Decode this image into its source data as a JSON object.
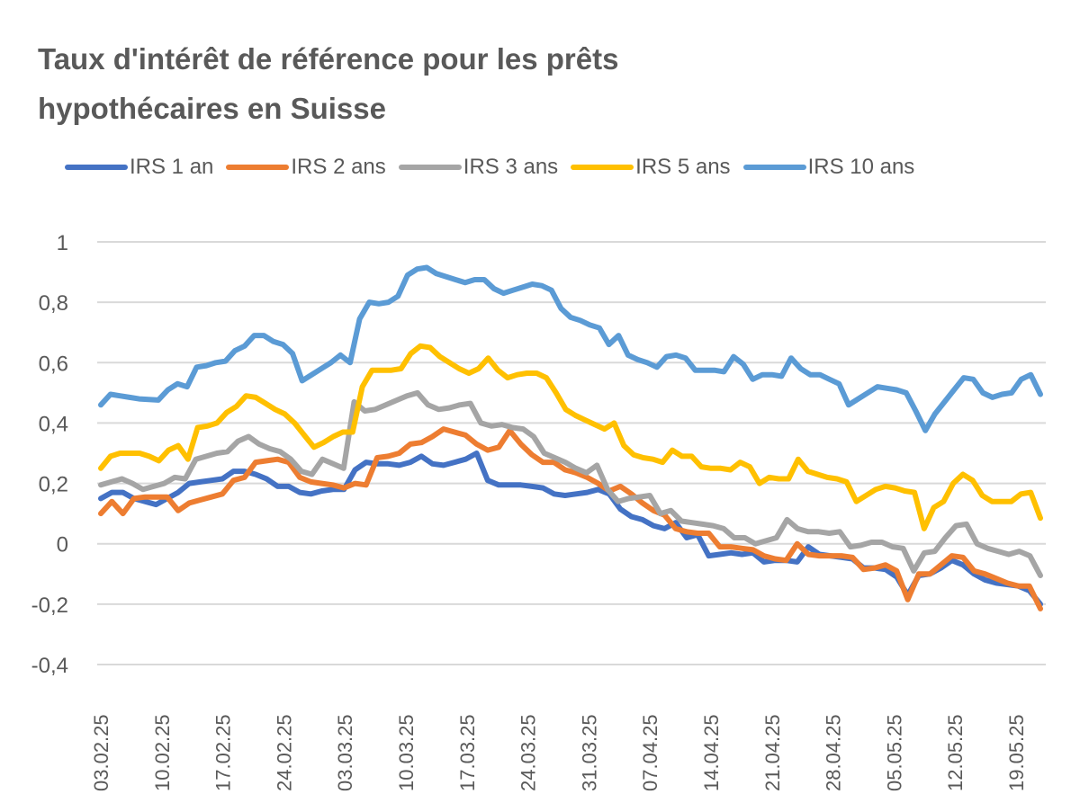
{
  "chart_data": {
    "type": "line",
    "title": "Taux d'intérêt de référence pour les prêts hypothécaires en Suisse",
    "title_lines": [
      "Taux d'intérêt de référence pour les prêts",
      "hypothécaires en Suisse"
    ],
    "xlabel": "",
    "ylabel": "",
    "ylim": [
      -0.4,
      1
    ],
    "yticks": [
      1,
      0.8,
      0.6,
      0.4,
      0.2,
      0,
      -0.2,
      -0.4
    ],
    "ytick_labels": [
      "1",
      "0,8",
      "0,6",
      "0,4",
      "0,2",
      "0",
      "-0,2",
      "-0,4"
    ],
    "xtick_labels": [
      "03.02.25",
      "10.02.25",
      "17.02.25",
      "24.02.25",
      "03.03.25",
      "10.03.25",
      "17.03.25",
      "24.03.25",
      "31.03.25",
      "07.04.25",
      "14.04.25",
      "21.04.25",
      "28.04.25",
      "05.05.25",
      "12.05.25",
      "19.05.25"
    ],
    "points_per_tick": 5,
    "grid": true,
    "legend_position": "top",
    "series": [
      {
        "name": "IRS 1 an",
        "color": "#4472C4",
        "values": [
          0.15,
          0.17,
          0.17,
          0.15,
          0.14,
          0.13,
          0.15,
          0.17,
          0.2,
          0.205,
          0.21,
          0.215,
          0.24,
          0.24,
          0.23,
          0.215,
          0.19,
          0.19,
          0.17,
          0.165,
          0.175,
          0.18,
          0.18,
          0.245,
          0.27,
          0.265,
          0.265,
          0.26,
          0.27,
          0.29,
          0.265,
          0.26,
          0.27,
          0.28,
          0.3,
          0.21,
          0.195,
          0.195,
          0.195,
          0.19,
          0.185,
          0.165,
          0.16,
          0.165,
          0.17,
          0.18,
          0.165,
          0.115,
          0.09,
          0.08,
          0.06,
          0.05,
          0.07,
          0.02,
          0.03,
          -0.04,
          -0.035,
          -0.03,
          -0.035,
          -0.03,
          -0.06,
          -0.055,
          -0.055,
          -0.06,
          -0.01,
          -0.035,
          -0.04,
          -0.045,
          -0.05,
          -0.08,
          -0.08,
          -0.085,
          -0.11,
          -0.17,
          -0.105,
          -0.1,
          -0.08,
          -0.055,
          -0.07,
          -0.1,
          -0.12,
          -0.13,
          -0.135,
          -0.14,
          -0.155,
          -0.2
        ]
      },
      {
        "name": "IRS 2 ans",
        "color": "#ED7D31",
        "values": [
          0.1,
          0.14,
          0.1,
          0.15,
          0.155,
          0.155,
          0.155,
          0.11,
          0.135,
          0.145,
          0.155,
          0.165,
          0.21,
          0.22,
          0.27,
          0.275,
          0.28,
          0.27,
          0.22,
          0.205,
          0.2,
          0.195,
          0.185,
          0.2,
          0.195,
          0.285,
          0.29,
          0.3,
          0.33,
          0.335,
          0.355,
          0.38,
          0.37,
          0.36,
          0.33,
          0.31,
          0.32,
          0.375,
          0.33,
          0.295,
          0.27,
          0.27,
          0.245,
          0.235,
          0.22,
          0.2,
          0.175,
          0.19,
          0.165,
          0.135,
          0.11,
          0.095,
          0.05,
          0.04,
          0.035,
          0.035,
          -0.01,
          -0.01,
          -0.015,
          -0.02,
          -0.04,
          -0.05,
          -0.055,
          0.0,
          -0.035,
          -0.04,
          -0.04,
          -0.04,
          -0.045,
          -0.085,
          -0.08,
          -0.07,
          -0.09,
          -0.185,
          -0.1,
          -0.1,
          -0.07,
          -0.04,
          -0.045,
          -0.09,
          -0.1,
          -0.115,
          -0.13,
          -0.14,
          -0.14,
          -0.215
        ]
      },
      {
        "name": "IRS 3 ans",
        "color": "#A5A5A5",
        "values": [
          0.195,
          0.205,
          0.215,
          0.2,
          0.18,
          0.19,
          0.2,
          0.22,
          0.215,
          0.28,
          0.29,
          0.3,
          0.305,
          0.34,
          0.355,
          0.33,
          0.315,
          0.305,
          0.28,
          0.24,
          0.23,
          0.28,
          0.265,
          0.25,
          0.47,
          0.44,
          0.445,
          0.46,
          0.475,
          0.49,
          0.5,
          0.46,
          0.445,
          0.45,
          0.46,
          0.465,
          0.4,
          0.39,
          0.395,
          0.385,
          0.38,
          0.355,
          0.3,
          0.285,
          0.27,
          0.25,
          0.235,
          0.26,
          0.18,
          0.14,
          0.15,
          0.155,
          0.16,
          0.1,
          0.11,
          0.075,
          0.07,
          0.065,
          0.06,
          0.05,
          0.02,
          0.02,
          0.0,
          0.01,
          0.02,
          0.08,
          0.05,
          0.04,
          0.04,
          0.035,
          0.04,
          -0.01,
          -0.005,
          0.005,
          0.005,
          -0.01,
          -0.015,
          -0.09,
          -0.03,
          -0.025,
          0.02,
          0.06,
          0.065,
          0.0,
          -0.015,
          -0.025,
          -0.035,
          -0.025,
          -0.04,
          -0.105
        ]
      },
      {
        "name": "IRS 5 ans",
        "color": "#FFC000",
        "values": [
          0.25,
          0.29,
          0.3,
          0.3,
          0.3,
          0.29,
          0.275,
          0.31,
          0.325,
          0.28,
          0.385,
          0.39,
          0.4,
          0.435,
          0.455,
          0.49,
          0.485,
          0.465,
          0.445,
          0.43,
          0.4,
          0.36,
          0.32,
          0.335,
          0.355,
          0.37,
          0.37,
          0.52,
          0.575,
          0.575,
          0.575,
          0.58,
          0.63,
          0.655,
          0.65,
          0.62,
          0.6,
          0.58,
          0.565,
          0.58,
          0.615,
          0.575,
          0.55,
          0.56,
          0.565,
          0.565,
          0.55,
          0.5,
          0.445,
          0.425,
          0.41,
          0.395,
          0.38,
          0.4,
          0.325,
          0.295,
          0.285,
          0.28,
          0.27,
          0.31,
          0.29,
          0.29,
          0.255,
          0.25,
          0.25,
          0.245,
          0.27,
          0.255,
          0.2,
          0.22,
          0.215,
          0.215,
          0.28,
          0.24,
          0.23,
          0.22,
          0.215,
          0.205,
          0.14,
          0.16,
          0.18,
          0.19,
          0.185,
          0.175,
          0.17,
          0.05,
          0.12,
          0.14,
          0.2,
          0.23,
          0.21,
          0.16,
          0.14,
          0.14,
          0.14,
          0.165,
          0.17,
          0.085
        ]
      },
      {
        "name": "IRS 10 ans",
        "color": "#5B9BD5",
        "values": [
          0.46,
          0.495,
          0.49,
          0.485,
          0.48,
          0.478,
          0.476,
          0.51,
          0.53,
          0.52,
          0.585,
          0.59,
          0.6,
          0.605,
          0.64,
          0.655,
          0.69,
          0.69,
          0.67,
          0.66,
          0.63,
          0.54,
          0.56,
          0.58,
          0.6,
          0.625,
          0.6,
          0.745,
          0.8,
          0.795,
          0.8,
          0.82,
          0.89,
          0.91,
          0.915,
          0.895,
          0.885,
          0.875,
          0.865,
          0.875,
          0.875,
          0.845,
          0.83,
          0.84,
          0.85,
          0.86,
          0.855,
          0.84,
          0.78,
          0.75,
          0.74,
          0.725,
          0.715,
          0.66,
          0.69,
          0.625,
          0.61,
          0.6,
          0.585,
          0.62,
          0.625,
          0.615,
          0.575,
          0.575,
          0.575,
          0.57,
          0.62,
          0.595,
          0.545,
          0.56,
          0.56,
          0.555,
          0.615,
          0.58,
          0.56,
          0.56,
          0.545,
          0.53,
          0.46,
          0.48,
          0.5,
          0.52,
          0.515,
          0.51,
          0.5,
          0.44,
          0.375,
          0.43,
          0.47,
          0.51,
          0.55,
          0.545,
          0.5,
          0.485,
          0.495,
          0.5,
          0.545,
          0.56,
          0.495
        ]
      }
    ]
  },
  "legend": {
    "items": [
      "IRS 1 an",
      "IRS 2 ans",
      "IRS 3 ans",
      "IRS 5 ans",
      "IRS 10 ans"
    ]
  }
}
